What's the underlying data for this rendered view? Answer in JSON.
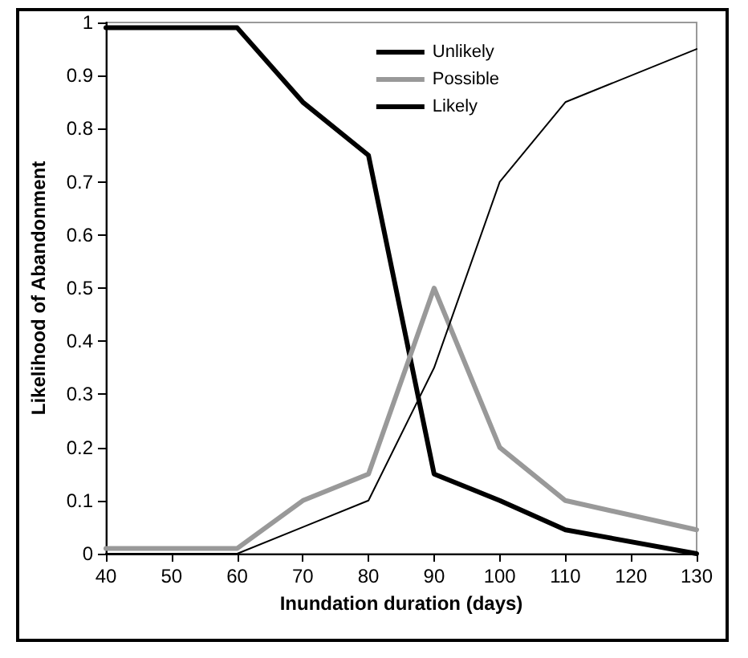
{
  "chart_data": {
    "type": "line",
    "xlabel": "Inundation duration (days)",
    "ylabel": "Likelihood of Abandonment",
    "xlim": [
      40,
      130
    ],
    "xticks": [
      40,
      50,
      60,
      70,
      80,
      90,
      100,
      110,
      120,
      130
    ],
    "ylim": [
      0,
      1
    ],
    "yticks": [
      0,
      0.1,
      0.2,
      0.3,
      0.4,
      0.5,
      0.6,
      0.7,
      0.8,
      0.9,
      1
    ],
    "grid": false,
    "legend": "top right",
    "marker": "none",
    "line_style": "solid",
    "x": [
      40,
      60,
      70,
      80,
      90,
      100,
      110,
      130
    ],
    "series": [
      {
        "name": "Unlikely",
        "color": "#000000",
        "values": [
          0,
          0,
          0.05,
          0.1,
          0.35,
          0.7,
          0.85,
          0.95
        ]
      },
      {
        "name": "Possible",
        "color": "#999999",
        "values": [
          0.01,
          0.01,
          0.1,
          0.15,
          0.5,
          0.2,
          0.1,
          0.045
        ]
      },
      {
        "name": "Likely",
        "color": "#000000",
        "values": [
          0.99,
          0.99,
          0.85,
          0.75,
          0.15,
          0.1,
          0.045,
          0
        ]
      }
    ]
  }
}
